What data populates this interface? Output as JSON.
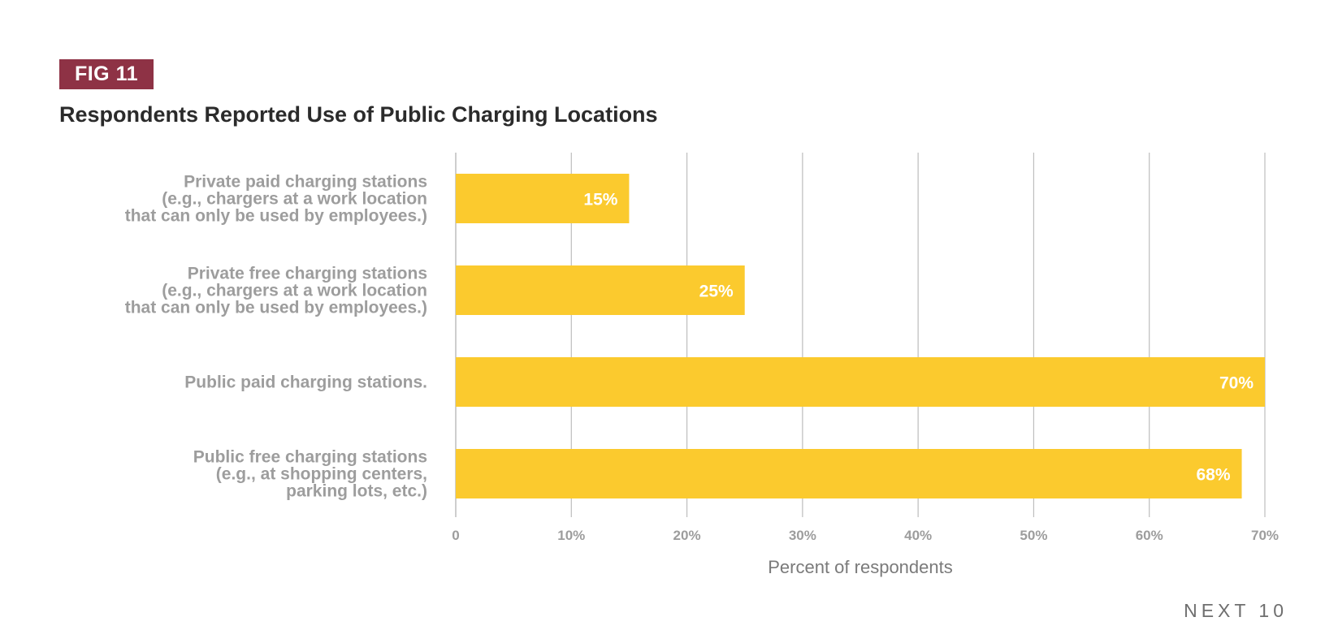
{
  "figure": {
    "badge": "FIG 11",
    "title": "Respondents Reported Use of Public Charging Locations"
  },
  "colors": {
    "bar": "#fbca2e",
    "badge": "#8e3245",
    "gridline": "#bdbdbd",
    "label_text": "#9d9d9d",
    "value_text": "#ffffff"
  },
  "chart_data": {
    "type": "bar",
    "orientation": "horizontal",
    "categories": [
      [
        "Private paid charging stations",
        "(e.g., chargers at a work location",
        "that can only be used by employees.)"
      ],
      [
        "Private free charging stations",
        "(e.g., chargers at a work location",
        "that can only be used by employees.)"
      ],
      [
        "Public paid charging stations."
      ],
      [
        "Public free charging stations",
        "(e.g., at shopping centers,",
        "parking lots, etc.)"
      ]
    ],
    "values": [
      15,
      25,
      70,
      68
    ],
    "value_labels": [
      "15%",
      "25%",
      "70%",
      "68%"
    ],
    "xlim": [
      0,
      70
    ],
    "xticks": [
      0,
      10,
      20,
      30,
      40,
      50,
      60,
      70
    ],
    "xtick_labels": [
      "0",
      "10%",
      "20%",
      "30%",
      "40%",
      "50%",
      "60%",
      "70%"
    ],
    "xlabel": "Percent of respondents",
    "grid": true,
    "legend": "none"
  },
  "footer": {
    "brand": "NEXT 10"
  }
}
